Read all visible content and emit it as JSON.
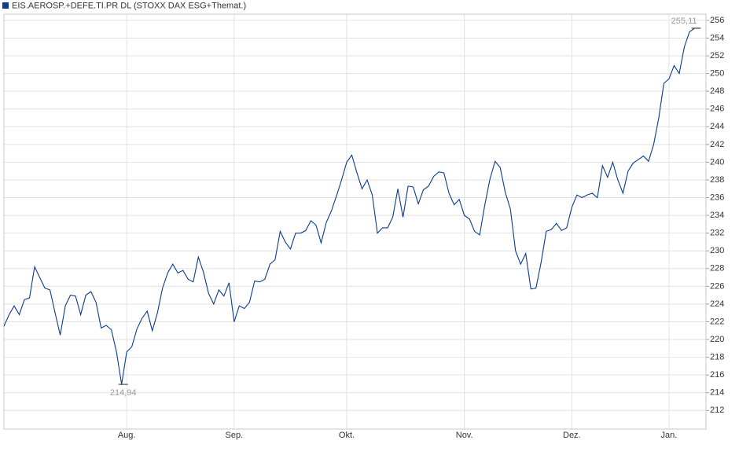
{
  "chart_data": {
    "type": "line",
    "categories": [
      null,
      null,
      null,
      null,
      null,
      null,
      null,
      null,
      null,
      null,
      null,
      null,
      null,
      null,
      null,
      null,
      null,
      null,
      null,
      null,
      null,
      null,
      null,
      null,
      "Aug.",
      null,
      null,
      null,
      null,
      null,
      null,
      null,
      null,
      null,
      null,
      null,
      null,
      null,
      null,
      null,
      null,
      null,
      null,
      null,
      null,
      "Sep.",
      null,
      null,
      null,
      null,
      null,
      null,
      null,
      null,
      null,
      null,
      null,
      null,
      null,
      null,
      null,
      null,
      null,
      null,
      null,
      null,
      null,
      "Okt.",
      null,
      null,
      null,
      null,
      null,
      null,
      null,
      null,
      null,
      null,
      null,
      null,
      null,
      null,
      null,
      null,
      null,
      null,
      null,
      null,
      null,
      null,
      "Nov.",
      null,
      null,
      null,
      null,
      null,
      null,
      null,
      null,
      null,
      null,
      null,
      null,
      null,
      null,
      null,
      null,
      null,
      null,
      null,
      null,
      "Dez.",
      null,
      null,
      null,
      null,
      null,
      null,
      null,
      null,
      null,
      null,
      null,
      null,
      null,
      null,
      null,
      null,
      null,
      null,
      "Jan.",
      null,
      null,
      null,
      null,
      null,
      null
    ],
    "series": [
      {
        "name": "EIS.AEROSP.+DEFE.TI.PR DL (STOXX DAX ESG+Themat.)",
        "color": "#0b3b8c",
        "values": [
          221.5,
          222.8,
          223.8,
          222.8,
          224.5,
          224.7,
          228.2,
          227,
          225.8,
          225.6,
          223,
          220.5,
          223.8,
          225,
          224.9,
          222.8,
          225,
          225.4,
          224.2,
          221.3,
          221.6,
          221.1,
          218.6,
          214.94,
          218.6,
          219.2,
          221.2,
          222.4,
          223.2,
          221,
          223,
          225.8,
          227.5,
          228.5,
          227.5,
          227.8,
          226.8,
          226.5,
          229.3,
          227.6,
          225.2,
          224,
          225.6,
          224.9,
          226.4,
          222,
          223.8,
          223.5,
          224.2,
          226.6,
          226.5,
          226.8,
          228.5,
          229,
          232.2,
          231,
          230.2,
          232,
          232,
          232.3,
          233.4,
          232.9,
          230.9,
          233.2,
          234.5,
          236.2,
          238,
          240,
          240.8,
          238.8,
          237,
          238,
          236.3,
          232,
          232.6,
          232.6,
          233.8,
          237,
          233.8,
          237.3,
          237.2,
          235.3,
          236.9,
          237.3,
          238.4,
          238.9,
          238.8,
          236.5,
          235.2,
          235.8,
          234,
          233.6,
          232.2,
          231.8,
          235.2,
          238.1,
          240.1,
          239.4,
          236.6,
          234.7,
          230,
          228.5,
          229.7,
          225.7,
          225.8,
          228.7,
          232.2,
          232.4,
          233.1,
          232.3,
          232.6,
          234.9,
          236.3,
          236,
          236.3,
          236.5,
          236,
          239.6,
          238.3,
          240,
          238,
          236.5,
          239,
          239.9,
          240.3,
          240.7,
          240.1,
          242,
          245,
          248.9,
          249.4,
          250.9,
          250,
          253,
          254.7,
          255.11,
          255.11
        ],
        "value_labels": [
          null,
          null,
          null,
          null,
          null,
          null,
          null,
          null,
          null,
          null,
          null,
          null,
          null,
          null,
          null,
          null,
          null,
          null,
          null,
          null,
          null,
          null,
          null,
          "214,94",
          null,
          null,
          null,
          null,
          null,
          null,
          null,
          null,
          null,
          null,
          null,
          null,
          null,
          null,
          null,
          null,
          null,
          null,
          null,
          null,
          null,
          null,
          null,
          null,
          null,
          null,
          null,
          null,
          null,
          null,
          null,
          null,
          null,
          null,
          null,
          null,
          null,
          null,
          null,
          null,
          null,
          null,
          null,
          null,
          null,
          null,
          null,
          null,
          null,
          null,
          null,
          null,
          null,
          null,
          null,
          null,
          null,
          null,
          null,
          null,
          null,
          null,
          null,
          null,
          null,
          null,
          null,
          null,
          null,
          null,
          null,
          null,
          null,
          null,
          null,
          null,
          null,
          null,
          null,
          null,
          null,
          null,
          null,
          null,
          null,
          null,
          null,
          null,
          null,
          null,
          null,
          null,
          null,
          null,
          null,
          null,
          null,
          null,
          null,
          null,
          null,
          null,
          null,
          null,
          null,
          null,
          null,
          null,
          null,
          null,
          null,
          "255,11",
          null
        ]
      }
    ],
    "ylim": [
      209.9,
      256.7
    ],
    "yticks": [
      212,
      214,
      216,
      218,
      220,
      222,
      224,
      226,
      228,
      230,
      232,
      234,
      236,
      238,
      240,
      242,
      244,
      246,
      248,
      250,
      252,
      254,
      256
    ],
    "grid": true
  }
}
